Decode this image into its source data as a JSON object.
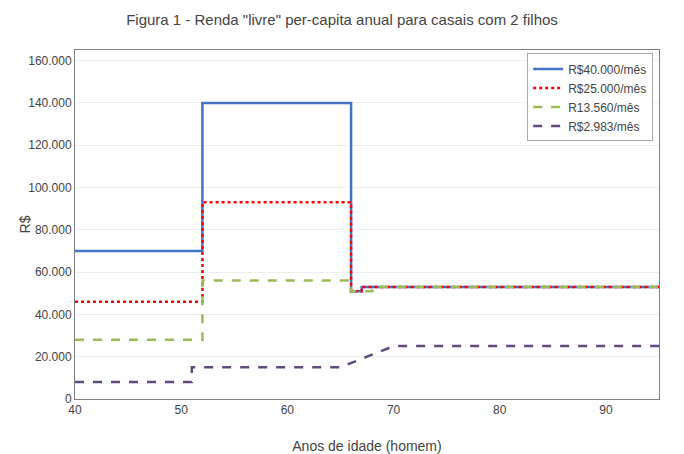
{
  "chart_data": {
    "type": "line",
    "title": "Figura 1 - Renda \"livre\" per-capita anual para casais com 2 filhos",
    "xlabel": "Anos de idade (homem)",
    "ylabel": "R$",
    "xlim": [
      40,
      95
    ],
    "ylim": [
      0,
      165000
    ],
    "xticks": [
      40,
      50,
      60,
      70,
      80,
      90
    ],
    "yticks": [
      0,
      {
        "value": 20000,
        "label": "20.000"
      },
      {
        "value": 40000,
        "label": "40.000"
      },
      {
        "value": 60000,
        "label": "60.000"
      },
      {
        "value": 80000,
        "label": "80.000"
      },
      {
        "value": 100000,
        "label": "100.000"
      },
      {
        "value": 120000,
        "label": "120.000"
      },
      {
        "value": 140000,
        "label": "140.000"
      },
      {
        "value": 160000,
        "label": "160.000"
      }
    ],
    "grid": "y",
    "legend": "upper right",
    "series": [
      {
        "name": "R$40.000/mês",
        "color": "#4472C4",
        "line_style": "solid",
        "x": [
          40,
          51,
          51,
          52,
          52,
          66,
          66,
          67,
          67,
          95
        ],
        "values": [
          70000,
          70000,
          70000,
          70000,
          140000,
          140000,
          51000,
          51000,
          53000,
          53000
        ]
      },
      {
        "name": "R$25.000/mês",
        "color": "#FF0000",
        "line_style": "dotted",
        "x": [
          40,
          51,
          51,
          52,
          52,
          66,
          66,
          67,
          67,
          95
        ],
        "values": [
          46000,
          46000,
          46000,
          46000,
          93000,
          93000,
          51000,
          51000,
          53000,
          53000
        ]
      },
      {
        "name": "R13.560/mês",
        "color": "#9BBB59",
        "line_style": "dashed",
        "x": [
          40,
          51,
          51,
          52,
          52,
          66,
          66,
          68,
          68,
          95
        ],
        "values": [
          28000,
          28000,
          28000,
          28000,
          56000,
          56000,
          51000,
          51000,
          53000,
          53000
        ]
      },
      {
        "name": "R$2.983/mês",
        "color": "#604A7B",
        "line_style": "dashed",
        "x": [
          40,
          51,
          51,
          65,
          65,
          70,
          70,
          95
        ],
        "values": [
          8000,
          8000,
          15000,
          15000,
          15000,
          25000,
          25000,
          25000
        ]
      }
    ]
  }
}
